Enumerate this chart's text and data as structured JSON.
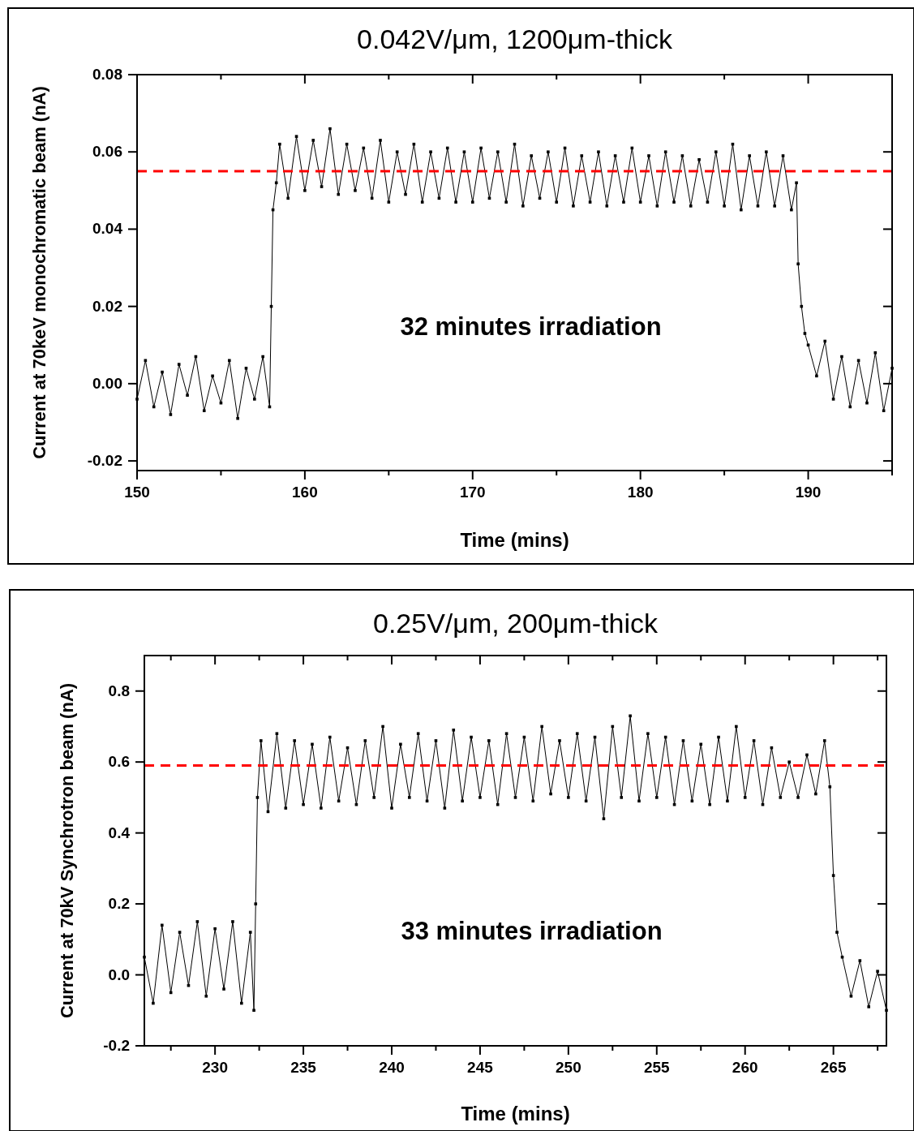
{
  "chart_data": [
    {
      "type": "line",
      "title": "0.042V/μm, 1200μm-thick",
      "xlabel": "Time (mins)",
      "ylabel": "Current at 70keV monochromatic beam (nA)",
      "marker": "square",
      "line_style": "solid",
      "grid": false,
      "xlim": [
        150,
        195
      ],
      "xticks": [
        150,
        {
          "value": 155,
          "label": null
        },
        160,
        {
          "value": 165,
          "label": null
        },
        170,
        {
          "value": 175,
          "label": null
        },
        180,
        {
          "value": 185,
          "label": null
        },
        190,
        {
          "value": 195,
          "label": null
        }
      ],
      "ylim": [
        -0.0225,
        0.08
      ],
      "yticks": [
        {
          "value": -0.02,
          "label": "-0.02"
        },
        {
          "value": 0,
          "label": "0.00"
        },
        {
          "value": 0.02,
          "label": "0.02"
        },
        {
          "value": 0.04,
          "label": "0.04"
        },
        {
          "value": 0.06,
          "label": "0.06"
        },
        {
          "value": 0.08,
          "label": "0.08"
        }
      ],
      "ref_lines": [
        {
          "axis": "y",
          "value": 0.055,
          "color": "#ff0000",
          "line_style": "dashed"
        }
      ],
      "annotations": [
        "32 minutes irradiation"
      ],
      "series": [
        {
          "color": "#000000",
          "x": [
            150,
            150.5,
            151,
            151.5,
            152,
            152.5,
            153,
            153.5,
            154,
            154.5,
            155,
            155.5,
            156,
            156.5,
            157,
            157.5,
            157.9,
            158,
            158.1,
            158.3,
            158.5,
            159,
            159.5,
            160,
            160.5,
            161,
            161.5,
            162,
            162.5,
            163,
            163.5,
            164,
            164.5,
            165,
            165.5,
            166,
            166.5,
            167,
            167.5,
            168,
            168.5,
            169,
            169.5,
            170,
            170.5,
            171,
            171.5,
            172,
            172.5,
            173,
            173.5,
            174,
            174.5,
            175,
            175.5,
            176,
            176.5,
            177,
            177.5,
            178,
            178.5,
            179,
            179.5,
            180,
            180.5,
            181,
            181.5,
            182,
            182.5,
            183,
            183.5,
            184,
            184.5,
            185,
            185.5,
            186,
            186.5,
            187,
            187.5,
            188,
            188.5,
            189,
            189.3,
            189.4,
            189.6,
            189.8,
            190,
            190.5,
            191,
            191.5,
            192,
            192.5,
            193,
            193.5,
            194,
            194.5,
            195
          ],
          "values": [
            -0.004,
            0.006,
            -0.006,
            0.003,
            -0.008,
            0.005,
            -0.003,
            0.007,
            -0.007,
            0.002,
            -0.005,
            0.006,
            -0.009,
            0.004,
            -0.004,
            0.007,
            -0.006,
            0.02,
            0.045,
            0.052,
            0.062,
            0.048,
            0.064,
            0.05,
            0.063,
            0.051,
            0.066,
            0.049,
            0.062,
            0.05,
            0.061,
            0.048,
            0.063,
            0.047,
            0.06,
            0.049,
            0.062,
            0.047,
            0.06,
            0.048,
            0.061,
            0.047,
            0.06,
            0.047,
            0.061,
            0.048,
            0.06,
            0.047,
            0.062,
            0.046,
            0.059,
            0.048,
            0.06,
            0.047,
            0.061,
            0.046,
            0.059,
            0.047,
            0.06,
            0.046,
            0.059,
            0.047,
            0.061,
            0.047,
            0.059,
            0.046,
            0.06,
            0.047,
            0.059,
            0.046,
            0.058,
            0.047,
            0.06,
            0.046,
            0.062,
            0.045,
            0.059,
            0.046,
            0.06,
            0.046,
            0.059,
            0.045,
            0.052,
            0.031,
            0.02,
            0.013,
            0.01,
            0.002,
            0.011,
            -0.004,
            0.007,
            -0.006,
            0.006,
            -0.005,
            0.008,
            -0.007,
            0.004
          ]
        }
      ]
    },
    {
      "type": "line",
      "title": "0.25V/μm, 200μm-thick",
      "xlabel": "Time (mins)",
      "ylabel": "Current at 70kV Synchrotron beam (nA)",
      "marker": "square",
      "line_style": "solid",
      "grid": false,
      "xlim": [
        226,
        268
      ],
      "xticks": [
        {
          "value": 227.5,
          "label": null
        },
        230,
        {
          "value": 232.5,
          "label": null
        },
        235,
        {
          "value": 237.5,
          "label": null
        },
        240,
        {
          "value": 242.5,
          "label": null
        },
        245,
        {
          "value": 247.5,
          "label": null
        },
        250,
        {
          "value": 252.5,
          "label": null
        },
        255,
        {
          "value": 257.5,
          "label": null
        },
        260,
        {
          "value": 262.5,
          "label": null
        },
        265,
        {
          "value": 267.5,
          "label": null
        }
      ],
      "ylim": [
        -0.2,
        0.9
      ],
      "yticks": [
        -0.2,
        {
          "value": 0,
          "label": "0.0"
        },
        0.2,
        0.4,
        0.6,
        0.8
      ],
      "ref_lines": [
        {
          "axis": "y",
          "value": 0.59,
          "color": "#ff0000",
          "line_style": "dashed"
        }
      ],
      "annotations": [
        "33 minutes irradiation"
      ],
      "series": [
        {
          "color": "#000000",
          "x": [
            226,
            226.5,
            227,
            227.5,
            228,
            228.5,
            229,
            229.5,
            230,
            230.5,
            231,
            231.5,
            232,
            232.2,
            232.3,
            232.4,
            232.6,
            233,
            233.5,
            234,
            234.5,
            235,
            235.5,
            236,
            236.5,
            237,
            237.5,
            238,
            238.5,
            239,
            239.5,
            240,
            240.5,
            241,
            241.5,
            242,
            242.5,
            243,
            243.5,
            244,
            244.5,
            245,
            245.5,
            246,
            246.5,
            247,
            247.5,
            248,
            248.5,
            249,
            249.5,
            250,
            250.5,
            251,
            251.5,
            252,
            252.5,
            253,
            253.5,
            254,
            254.5,
            255,
            255.5,
            256,
            256.5,
            257,
            257.5,
            258,
            258.5,
            259,
            259.5,
            260,
            260.5,
            261,
            261.5,
            262,
            262.5,
            263,
            263.5,
            264,
            264.5,
            264.8,
            265,
            265.2,
            265.5,
            266,
            266.5,
            267,
            267.5,
            268
          ],
          "values": [
            0.05,
            -0.08,
            0.14,
            -0.05,
            0.12,
            -0.03,
            0.15,
            -0.06,
            0.13,
            -0.04,
            0.15,
            -0.08,
            0.12,
            -0.1,
            0.2,
            0.5,
            0.66,
            0.46,
            0.68,
            0.47,
            0.66,
            0.48,
            0.65,
            0.47,
            0.67,
            0.49,
            0.64,
            0.48,
            0.66,
            0.5,
            0.7,
            0.47,
            0.65,
            0.5,
            0.68,
            0.49,
            0.66,
            0.47,
            0.69,
            0.49,
            0.67,
            0.5,
            0.66,
            0.48,
            0.68,
            0.5,
            0.67,
            0.49,
            0.7,
            0.51,
            0.66,
            0.5,
            0.68,
            0.49,
            0.67,
            0.44,
            0.7,
            0.5,
            0.73,
            0.49,
            0.68,
            0.5,
            0.67,
            0.48,
            0.66,
            0.49,
            0.65,
            0.48,
            0.67,
            0.49,
            0.7,
            0.5,
            0.66,
            0.48,
            0.64,
            0.5,
            0.6,
            0.5,
            0.62,
            0.51,
            0.66,
            0.53,
            0.28,
            0.12,
            0.05,
            -0.06,
            0.04,
            -0.09,
            0.01,
            -0.1
          ]
        }
      ]
    }
  ]
}
